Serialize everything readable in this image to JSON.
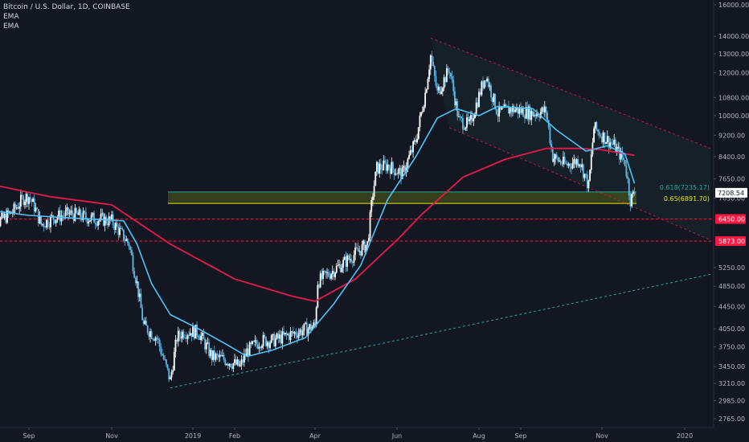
{
  "legend": {
    "title": "Bitcoin / U.S. Dollar, 1D, COINBASE",
    "indicator_1": "EMA",
    "indicator_2": "EMA"
  },
  "colors": {
    "background": "#131722",
    "candle_up": "#ffffff",
    "candle_down": "#5db8e8",
    "ema_fast": "#4fc3f7",
    "ema_slow": "#e5194b",
    "fib_green": "#26a69a",
    "fib_yellow": "#e6e61a",
    "support": "#ff1744",
    "channel": "#e5194b",
    "trendline": "#26a69a"
  },
  "chart_data": {
    "type": "candlestick",
    "symbol": "Bitcoin / U.S. Dollar",
    "interval": "1D",
    "exchange": "COINBASE",
    "x_tick_labels": [
      "Sep",
      "Nov",
      "2019",
      "Feb",
      "Apr",
      "Jun",
      "Aug",
      "Sep",
      "Nov",
      "2020"
    ],
    "y_tick_labels": [
      "16000.00",
      "14000.00",
      "13000.00",
      "12000.00",
      "10800.00",
      "10000.00",
      "9200.00",
      "8400.00",
      "7650.00",
      "7050.00",
      "6450.00",
      "5873.00",
      "5250.00",
      "4850.00",
      "4450.00",
      "4050.00",
      "3750.00",
      "3450.00",
      "3210.00",
      "2985.00",
      "2765.00"
    ],
    "y_ticks_regular": [
      "16000.00",
      "14000.00",
      "13000.00",
      "12000.00",
      "10800.00",
      "10000.00",
      "9200.00",
      "8400.00",
      "7650.00",
      "7050.00",
      "5250.00",
      "4850.00",
      "4450.00",
      "4050.00",
      "3750.00",
      "3450.00",
      "3210.00",
      "2985.00",
      "2765.00"
    ],
    "y_scale": "log",
    "ylim": [
      2700,
      16500
    ],
    "last_price": "7208.54",
    "support_levels": [
      {
        "label": "6450.00",
        "value": 6450
      },
      {
        "label": "5873.00",
        "value": 5873
      }
    ],
    "fib_levels": [
      {
        "label": "0.618(7235.17)",
        "value": 7235.17,
        "color": "green"
      },
      {
        "label": "0.65(6891.70)",
        "value": 6891.7,
        "color": "yellow"
      }
    ],
    "price_path": [
      [
        "2018-08-01",
        6400
      ],
      [
        "2018-08-10",
        6380
      ],
      [
        "2018-08-20",
        6650
      ],
      [
        "2018-08-28",
        7050
      ],
      [
        "2018-09-01",
        7100
      ],
      [
        "2018-09-05",
        6800
      ],
      [
        "2018-09-10",
        6300
      ],
      [
        "2018-09-20",
        6500
      ],
      [
        "2018-10-01",
        6600
      ],
      [
        "2018-10-15",
        6480
      ],
      [
        "2018-11-01",
        6400
      ],
      [
        "2018-11-14",
        5800
      ],
      [
        "2018-11-20",
        4900
      ],
      [
        "2018-11-25",
        4100
      ],
      [
        "2018-12-05",
        3900
      ],
      [
        "2018-12-15",
        3250
      ],
      [
        "2018-12-20",
        3900
      ],
      [
        "2018-12-25",
        4000
      ],
      [
        "2019-01-05",
        4000
      ],
      [
        "2019-01-15",
        3600
      ],
      [
        "2019-01-25",
        3550
      ],
      [
        "2019-02-05",
        3450
      ],
      [
        "2019-02-10",
        3680
      ],
      [
        "2019-02-20",
        3850
      ],
      [
        "2019-03-01",
        3850
      ],
      [
        "2019-03-20",
        4000
      ],
      [
        "2019-04-01",
        4100
      ],
      [
        "2019-04-03",
        4950
      ],
      [
        "2019-04-20",
        5300
      ],
      [
        "2019-05-10",
        5800
      ],
      [
        "2019-05-14",
        7200
      ],
      [
        "2019-05-17",
        8000
      ],
      [
        "2019-05-25",
        8100
      ],
      [
        "2019-06-05",
        7800
      ],
      [
        "2019-06-15",
        9000
      ],
      [
        "2019-06-22",
        11000
      ],
      [
        "2019-06-26",
        12900
      ],
      [
        "2019-07-01",
        11000
      ],
      [
        "2019-07-10",
        12200
      ],
      [
        "2019-07-17",
        9800
      ],
      [
        "2019-07-25",
        9600
      ],
      [
        "2019-08-06",
        11900
      ],
      [
        "2019-08-15",
        10100
      ],
      [
        "2019-08-25",
        10300
      ],
      [
        "2019-09-01",
        10200
      ],
      [
        "2019-09-10",
        10100
      ],
      [
        "2019-09-20",
        10200
      ],
      [
        "2019-09-25",
        8400
      ],
      [
        "2019-10-05",
        8100
      ],
      [
        "2019-10-15",
        8300
      ],
      [
        "2019-10-22",
        7400
      ],
      [
        "2019-10-26",
        9500
      ],
      [
        "2019-11-01",
        9200
      ],
      [
        "2019-11-10",
        8800
      ],
      [
        "2019-11-18",
        8200
      ],
      [
        "2019-11-22",
        7000
      ],
      [
        "2019-11-25",
        7200
      ]
    ],
    "ema_fast_path": [
      [
        "2018-08-01",
        6700
      ],
      [
        "2018-09-01",
        6550
      ],
      [
        "2018-10-01",
        6480
      ],
      [
        "2018-11-01",
        6420
      ],
      [
        "2018-11-10",
        6400
      ],
      [
        "2018-11-20",
        5800
      ],
      [
        "2018-12-01",
        4900
      ],
      [
        "2018-12-15",
        4300
      ],
      [
        "2019-01-05",
        4050
      ],
      [
        "2019-01-25",
        3800
      ],
      [
        "2019-02-10",
        3600
      ],
      [
        "2019-03-01",
        3700
      ],
      [
        "2019-03-25",
        3900
      ],
      [
        "2019-04-15",
        4500
      ],
      [
        "2019-05-05",
        5300
      ],
      [
        "2019-05-25",
        7000
      ],
      [
        "2019-06-15",
        8400
      ],
      [
        "2019-07-01",
        9900
      ],
      [
        "2019-07-15",
        10300
      ],
      [
        "2019-08-01",
        10000
      ],
      [
        "2019-08-15",
        10400
      ],
      [
        "2019-09-10",
        10300
      ],
      [
        "2019-09-28",
        9400
      ],
      [
        "2019-10-20",
        8600
      ],
      [
        "2019-11-05",
        8800
      ],
      [
        "2019-11-18",
        8500
      ],
      [
        "2019-11-25",
        7500
      ]
    ],
    "ema_slow_path": [
      [
        "2018-08-01",
        7500
      ],
      [
        "2018-09-15",
        7100
      ],
      [
        "2018-11-01",
        6850
      ],
      [
        "2018-12-15",
        5800
      ],
      [
        "2019-02-01",
        5000
      ],
      [
        "2019-03-15",
        4650
      ],
      [
        "2019-04-01",
        4550
      ],
      [
        "2019-05-01",
        5000
      ],
      [
        "2019-06-01",
        5900
      ],
      [
        "2019-06-20",
        6600
      ],
      [
        "2019-07-20",
        7700
      ],
      [
        "2019-08-20",
        8300
      ],
      [
        "2019-09-20",
        8700
      ],
      [
        "2019-10-15",
        8700
      ],
      [
        "2019-11-01",
        8650
      ],
      [
        "2019-11-25",
        8450
      ]
    ],
    "channel_upper": [
      [
        "2019-06-26",
        13900
      ],
      [
        "2020-01-20",
        8700
      ]
    ],
    "channel_lower": [
      [
        "2019-07-10",
        9500
      ],
      [
        "2020-01-20",
        5900
      ]
    ],
    "support_trendline": [
      [
        "2018-12-15",
        3150
      ],
      [
        "2020-01-20",
        5100
      ]
    ]
  }
}
